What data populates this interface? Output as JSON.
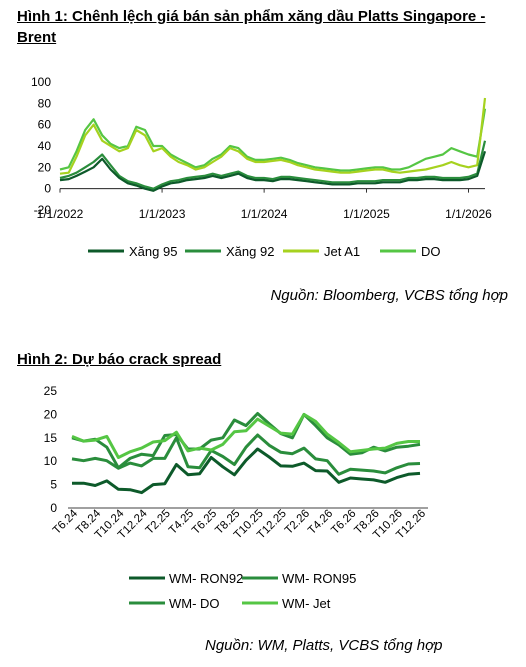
{
  "figure1": {
    "title": "Hình 1: Chênh lệch giá bán sản phẩm xăng dầu Platts Singapore - Brent",
    "source": "Nguồn: Bloomberg, VCBS tổng hợp"
  },
  "figure2": {
    "title": "Hình 2: Dự báo crack spread",
    "source": "Nguồn: WM, Platts, VCBS tổng hợp"
  },
  "colors": {
    "dark_green": "#0d5a2a",
    "mid_green": "#2a8d3c",
    "yellow_green": "#a6d21f",
    "light_green": "#55c644"
  },
  "chart_data": [
    {
      "type": "line",
      "title": "Hình 1: Chênh lệch giá bán sản phẩm xăng dầu Platts Singapore - Brent",
      "x_ticks": [
        "1/1/2022",
        "1/1/2023",
        "1/1/2024",
        "1/1/2025",
        "1/1/2026"
      ],
      "y_ticks": [
        "100",
        "80",
        "60",
        "40",
        "20",
        "0",
        "-20"
      ],
      "ylim": [
        -20,
        100
      ],
      "grid": false,
      "legend_position": "bottom",
      "x": [
        "2022-01",
        "2022-02",
        "2022-03",
        "2022-04",
        "2022-05",
        "2022-06",
        "2022-07",
        "2022-08",
        "2022-09",
        "2022-10",
        "2022-11",
        "2022-12",
        "2023-01",
        "2023-02",
        "2023-03",
        "2023-04",
        "2023-05",
        "2023-06",
        "2023-07",
        "2023-08",
        "2023-09",
        "2023-10",
        "2023-11",
        "2023-12",
        "2024-01",
        "2024-02",
        "2024-03",
        "2024-04",
        "2024-05",
        "2024-06",
        "2024-07",
        "2024-08",
        "2024-09",
        "2024-10",
        "2024-11",
        "2024-12",
        "2025-01",
        "2025-02",
        "2025-03",
        "2025-04",
        "2025-05",
        "2025-06",
        "2025-07",
        "2025-08",
        "2025-09",
        "2025-10",
        "2025-11",
        "2025-12",
        "2026-01",
        "2026-02",
        "2026-03"
      ],
      "series": [
        {
          "name": "Xăng 95",
          "color": "#0d5a2a",
          "values": [
            8,
            9,
            12,
            16,
            20,
            28,
            18,
            10,
            5,
            3,
            0,
            -2,
            2,
            5,
            6,
            8,
            9,
            10,
            12,
            10,
            12,
            14,
            10,
            8,
            8,
            7,
            9,
            9,
            8,
            7,
            6,
            5,
            4,
            4,
            4,
            5,
            5,
            5,
            6,
            6,
            6,
            8,
            8,
            9,
            9,
            8,
            8,
            8,
            9,
            12,
            35
          ]
        },
        {
          "name": "Xăng 92",
          "color": "#2a8d3c",
          "values": [
            10,
            12,
            15,
            20,
            25,
            32,
            22,
            12,
            7,
            5,
            2,
            0,
            4,
            7,
            8,
            10,
            11,
            12,
            14,
            12,
            14,
            16,
            12,
            10,
            10,
            9,
            11,
            11,
            10,
            9,
            8,
            7,
            6,
            6,
            6,
            7,
            7,
            7,
            8,
            8,
            8,
            10,
            10,
            11,
            11,
            10,
            10,
            10,
            11,
            14,
            45
          ]
        },
        {
          "name": "Jet A1",
          "color": "#a6d21f",
          "values": [
            14,
            15,
            30,
            50,
            60,
            45,
            40,
            35,
            38,
            55,
            50,
            35,
            38,
            30,
            25,
            22,
            18,
            20,
            25,
            30,
            38,
            35,
            28,
            25,
            25,
            26,
            27,
            25,
            22,
            20,
            18,
            17,
            16,
            15,
            15,
            16,
            17,
            18,
            18,
            16,
            15,
            16,
            17,
            18,
            20,
            22,
            25,
            22,
            20,
            22,
            85
          ]
        },
        {
          "name": "DO",
          "color": "#55c644",
          "values": [
            18,
            20,
            35,
            55,
            65,
            50,
            42,
            38,
            40,
            58,
            55,
            40,
            40,
            32,
            28,
            24,
            20,
            22,
            28,
            32,
            40,
            38,
            30,
            27,
            27,
            28,
            29,
            27,
            24,
            22,
            20,
            19,
            18,
            17,
            17,
            18,
            19,
            20,
            20,
            18,
            18,
            20,
            24,
            28,
            30,
            32,
            38,
            35,
            32,
            30,
            75
          ]
        }
      ]
    },
    {
      "type": "line",
      "title": "Hình 2: Dự báo crack spread",
      "ylim": [
        0,
        25
      ],
      "y_ticks": [
        "25",
        "20",
        "15",
        "10",
        "5",
        "0"
      ],
      "grid": false,
      "legend_position": "bottom",
      "categories": [
        "T6.24",
        "T7.24",
        "T8.24",
        "T9.24",
        "T10.24",
        "T11.24",
        "T12.24",
        "T1.25",
        "T2.25",
        "T3.25",
        "T4.25",
        "T5.25",
        "T6.25",
        "T7.25",
        "T8.25",
        "T9.25",
        "T10.25",
        "T11.25",
        "T12.25",
        "T1.26",
        "T2.26",
        "T3.26",
        "T4.26",
        "T5.26",
        "T6.26",
        "T7.26",
        "T8.26",
        "T9.26",
        "T10.26",
        "T11.26",
        "T12.26"
      ],
      "tick_labels": [
        "T6.24",
        "T8.24",
        "T10.24",
        "T12.24",
        "T2.25",
        "T4.25",
        "T6.25",
        "T8.25",
        "T10.25",
        "T12.25",
        "T2.26",
        "T4.26",
        "T6.26",
        "T8.26",
        "T10.26",
        "T12.26"
      ],
      "series": [
        {
          "name": "WM- RON92",
          "color": "#0d5a2a",
          "values": [
            5.3,
            5.3,
            4.8,
            5.8,
            4.0,
            3.9,
            3.3,
            5.0,
            5.2,
            9.3,
            7.1,
            7.3,
            10.8,
            8.8,
            7.1,
            10.2,
            12.6,
            10.9,
            9.0,
            8.9,
            9.6,
            8.0,
            7.9,
            5.5,
            6.4,
            6.2,
            6.0,
            5.5,
            6.5,
            7.2,
            7.4
          ]
        },
        {
          "name": "WM- RON95",
          "color": "#2a8d3c",
          "values": [
            10.5,
            10.1,
            10.6,
            10.1,
            8.5,
            9.6,
            9.0,
            10.6,
            10.6,
            15.0,
            8.8,
            8.6,
            12.3,
            11.0,
            9.3,
            13.0,
            15.6,
            13.4,
            11.9,
            11.6,
            12.8,
            10.5,
            10.1,
            7.2,
            8.3,
            8.1,
            7.9,
            7.5,
            8.6,
            9.4,
            9.5
          ]
        },
        {
          "name": "WM- DO",
          "color": "#2a8d3c",
          "values": [
            15.0,
            14.3,
            14.7,
            13.0,
            8.6,
            10.6,
            11.5,
            11.2,
            15.5,
            15.7,
            12.6,
            12.6,
            14.5,
            15.0,
            18.8,
            17.6,
            20.2,
            18.0,
            15.9,
            15.0,
            20.0,
            17.6,
            15.0,
            13.5,
            11.5,
            11.8,
            13.0,
            12.2,
            13.0,
            13.2,
            13.6
          ]
        },
        {
          "name": "WM- Jet",
          "color": "#55c644",
          "values": [
            15.3,
            14.3,
            14.5,
            15.3,
            10.8,
            12.0,
            12.8,
            14.1,
            14.4,
            16.2,
            12.2,
            12.8,
            12.4,
            13.6,
            16.3,
            16.5,
            19.0,
            17.5,
            16.0,
            15.8,
            20.0,
            18.5,
            15.8,
            14.0,
            12.0,
            12.3,
            12.6,
            12.8,
            13.8,
            14.2,
            14.2
          ]
        }
      ]
    }
  ]
}
